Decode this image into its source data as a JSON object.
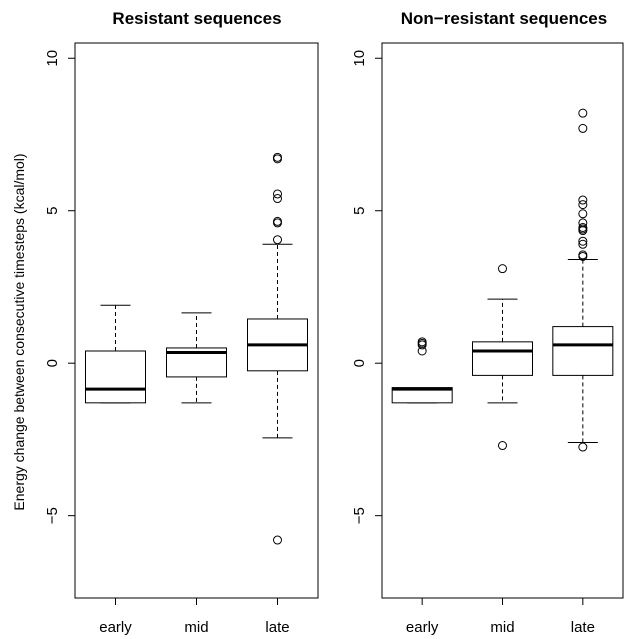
{
  "chart_data": [
    {
      "type": "box",
      "title": "Resistant sequences",
      "ylabel": "Energy change between consecutive timesteps (kcal/mol)",
      "xlabel": "",
      "categories": [
        "early",
        "mid",
        "late"
      ],
      "yticks": [
        -5,
        0,
        5,
        10
      ],
      "ylim": [
        -7.7,
        10.5
      ],
      "grid": false,
      "legend": "none",
      "boxes": [
        {
          "category": "early",
          "whisker_low": -1.3,
          "q1": -1.3,
          "median": -0.85,
          "q3": 0.4,
          "whisker_high": 1.9,
          "outliers": []
        },
        {
          "category": "mid",
          "whisker_low": -1.3,
          "q1": -0.45,
          "median": 0.35,
          "q3": 0.5,
          "whisker_high": 1.65,
          "outliers": []
        },
        {
          "category": "late",
          "whisker_low": -2.45,
          "q1": -0.25,
          "median": 0.6,
          "q3": 1.45,
          "whisker_high": 3.9,
          "outliers": [
            -5.8,
            4.05,
            4.6,
            4.65,
            5.4,
            5.55,
            6.7,
            6.75
          ]
        }
      ]
    },
    {
      "type": "box",
      "title": "Non−resistant sequences",
      "ylabel": "",
      "xlabel": "",
      "categories": [
        "early",
        "mid",
        "late"
      ],
      "yticks": [
        -5,
        0,
        5,
        10
      ],
      "ylim": [
        -7.7,
        10.5
      ],
      "grid": false,
      "legend": "none",
      "boxes": [
        {
          "category": "early",
          "whisker_low": -1.3,
          "q1": -1.3,
          "median": -0.85,
          "q3": -0.8,
          "whisker_high": -0.8,
          "outliers": [
            0.4,
            0.6,
            0.65,
            0.7
          ]
        },
        {
          "category": "mid",
          "whisker_low": -1.3,
          "q1": -0.4,
          "median": 0.4,
          "q3": 0.7,
          "whisker_high": 2.1,
          "outliers": [
            -2.7,
            3.1
          ]
        },
        {
          "category": "late",
          "whisker_low": -2.6,
          "q1": -0.4,
          "median": 0.6,
          "q3": 1.2,
          "whisker_high": 3.4,
          "outliers": [
            -2.75,
            3.5,
            3.55,
            3.9,
            4.0,
            4.35,
            4.4,
            4.45,
            4.6,
            4.9,
            5.2,
            5.35,
            7.7,
            8.2
          ]
        }
      ]
    }
  ]
}
